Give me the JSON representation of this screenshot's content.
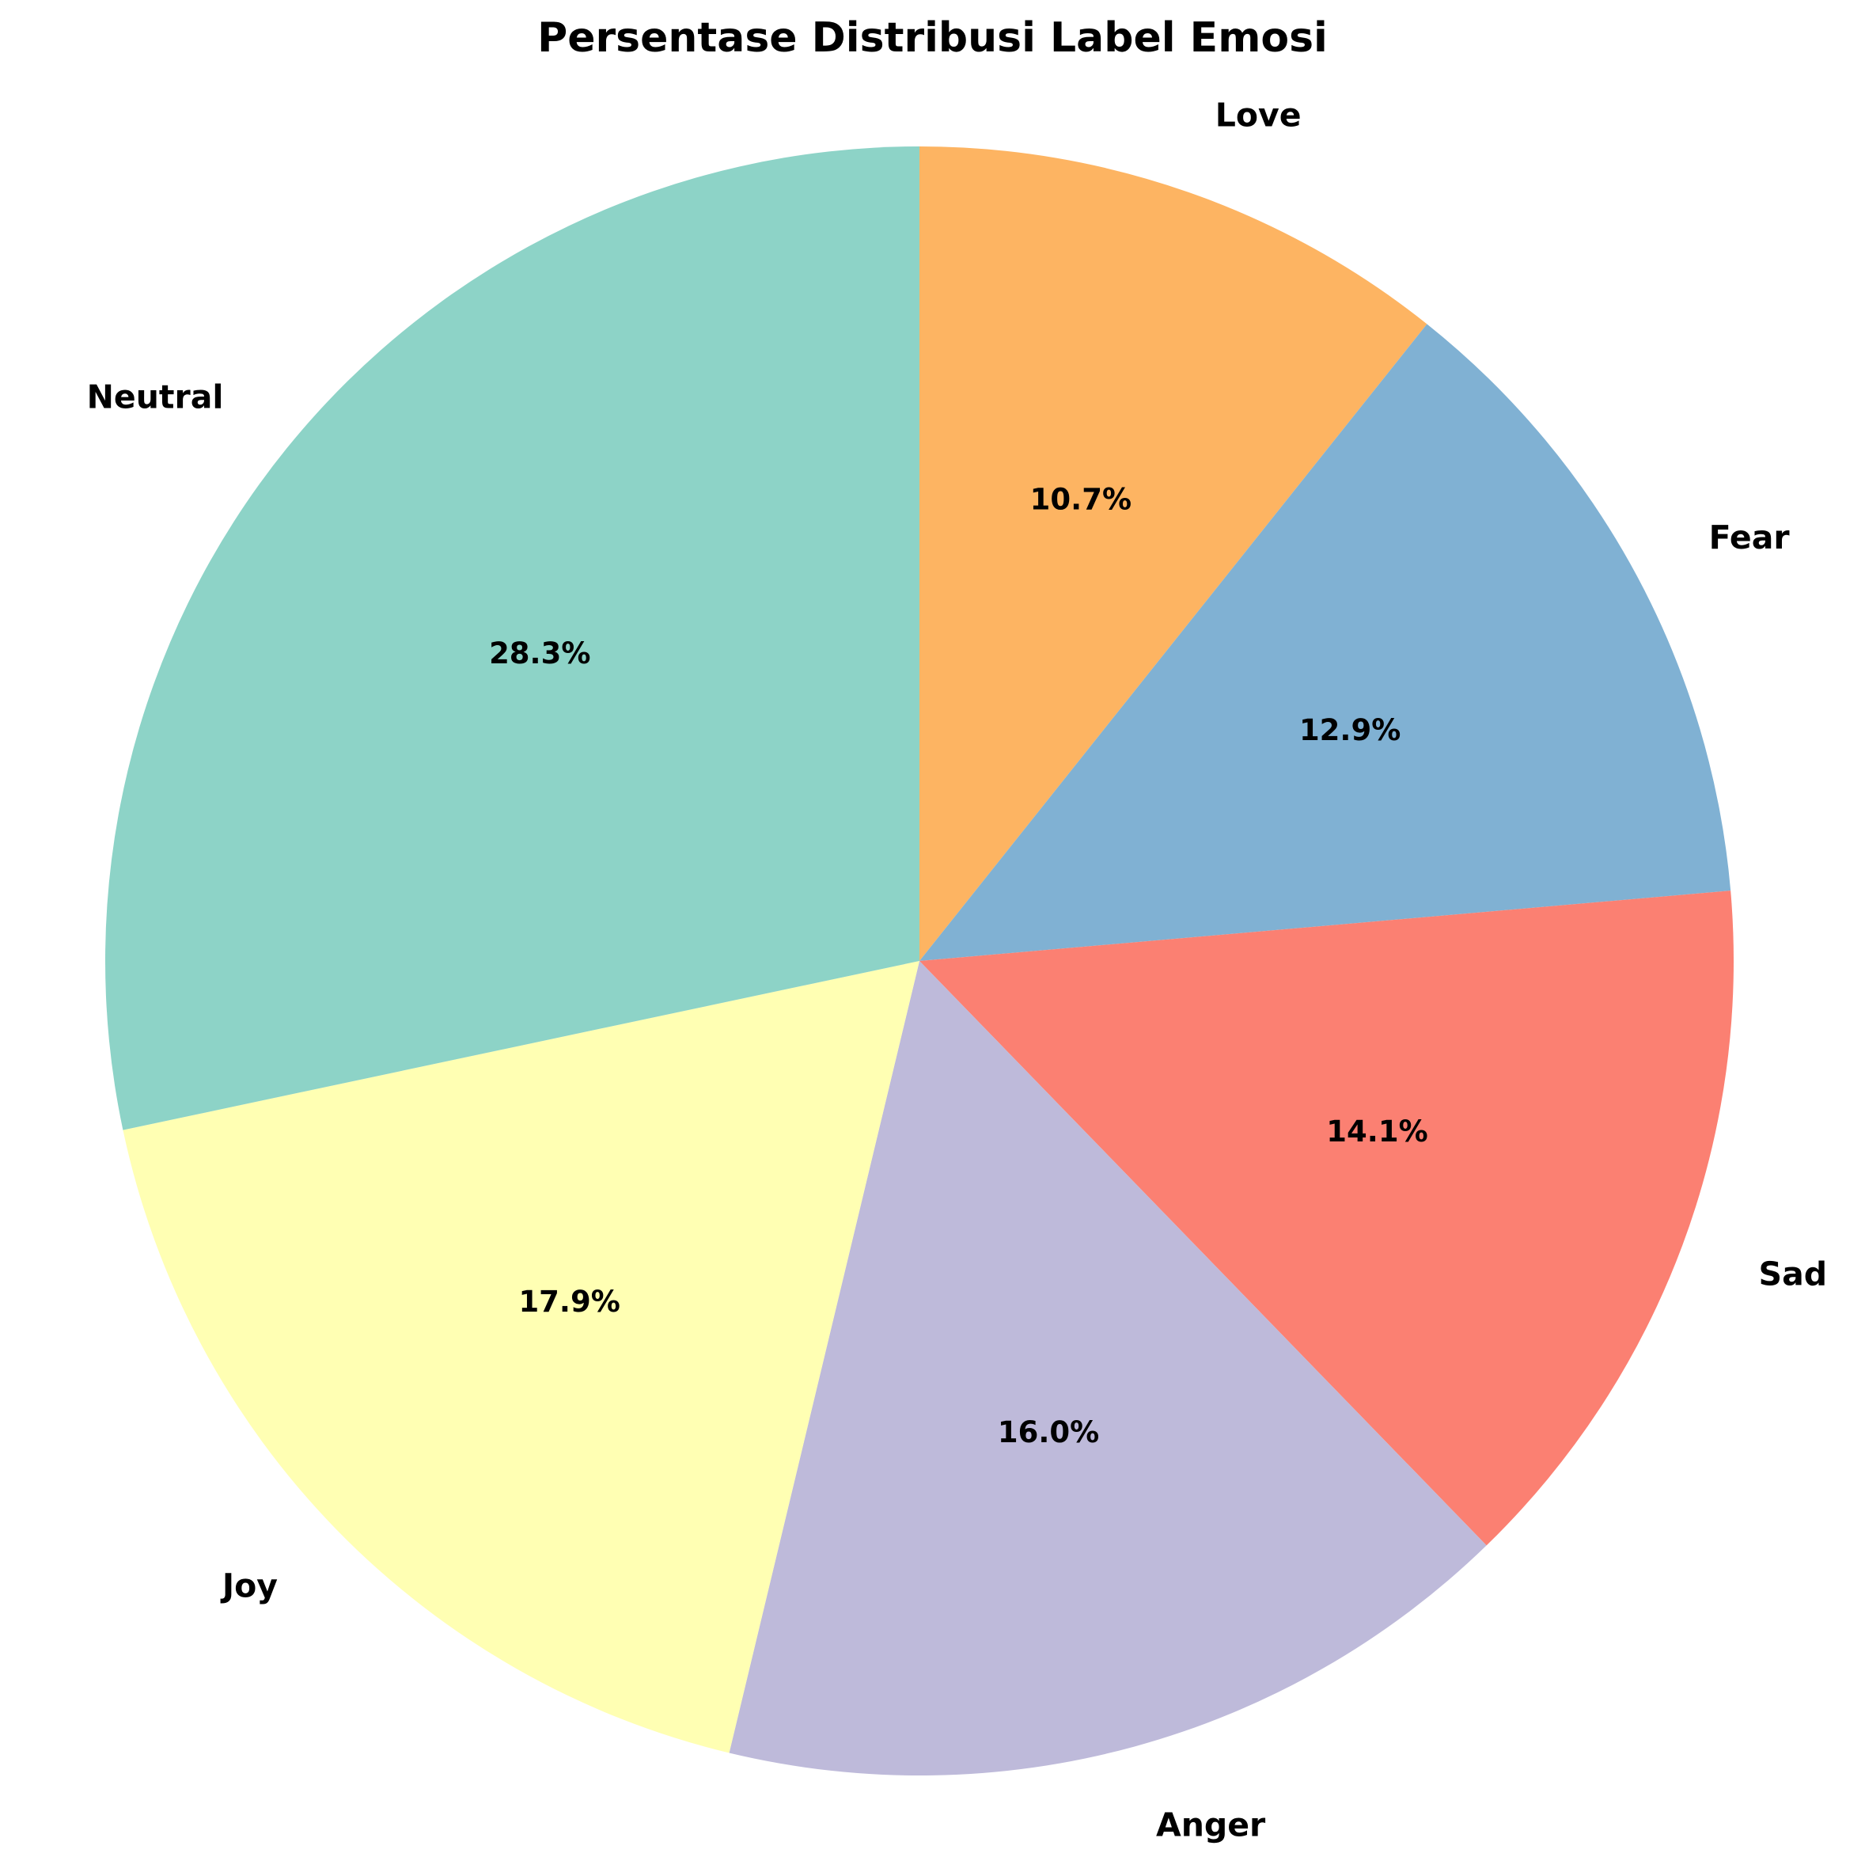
{
  "chart_data": {
    "type": "pie",
    "title": "Persentase Distribusi Label Emosi",
    "start_angle_deg": 90,
    "direction": "clockwise",
    "slices": [
      {
        "label": "Love",
        "value": 10.7,
        "pct_label": "10.7%",
        "color": "#fdb462"
      },
      {
        "label": "Fear",
        "value": 12.9,
        "pct_label": "12.9%",
        "color": "#80b1d3"
      },
      {
        "label": "Sad",
        "value": 14.1,
        "pct_label": "14.1%",
        "color": "#fb8072"
      },
      {
        "label": "Anger",
        "value": 16.0,
        "pct_label": "16.0%",
        "color": "#bebada"
      },
      {
        "label": "Joy",
        "value": 17.9,
        "pct_label": "17.9%",
        "color": "#ffffb3"
      },
      {
        "label": "Neutral",
        "value": 28.3,
        "pct_label": "28.3%",
        "color": "#8dd3c7"
      }
    ]
  }
}
